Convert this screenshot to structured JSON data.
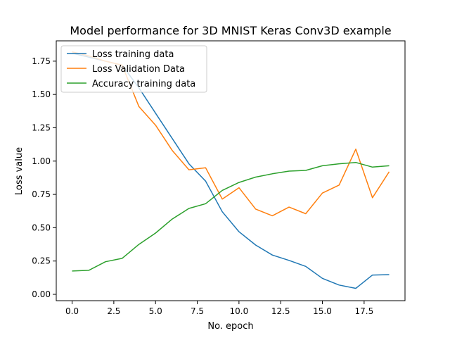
{
  "chart_data": {
    "type": "line",
    "title": "Model performance for 3D MNIST Keras Conv3D example",
    "xlabel": "No. epoch",
    "ylabel": "Loss value",
    "xlim": [
      -0.95,
      19.95
    ],
    "ylim": [
      -0.0475,
      1.9025
    ],
    "xticks": [
      0,
      2.5,
      5,
      7.5,
      10,
      12.5,
      15,
      17.5
    ],
    "xtick_labels": [
      "0.0",
      "2.5",
      "5.0",
      "7.5",
      "10.0",
      "12.5",
      "15.0",
      "17.5"
    ],
    "yticks": [
      0,
      0.25,
      0.5,
      0.75,
      1.0,
      1.25,
      1.5,
      1.75
    ],
    "ytick_labels": [
      "0.00",
      "0.25",
      "0.50",
      "0.75",
      "1.00",
      "1.25",
      "1.50",
      "1.75"
    ],
    "grid": false,
    "legend_position": "top-left",
    "x": [
      0,
      1,
      2,
      3,
      4,
      5,
      6,
      7,
      8,
      9,
      10,
      11,
      12,
      13,
      14,
      15,
      16,
      17,
      18,
      19
    ],
    "series": [
      {
        "name": "Loss training data",
        "color": "#1f77b4",
        "values": [
          1.81,
          1.78,
          1.75,
          1.72,
          1.55,
          1.36,
          1.17,
          0.98,
          0.85,
          0.62,
          0.47,
          0.37,
          0.295,
          0.255,
          0.21,
          0.12,
          0.07,
          0.045,
          0.145,
          0.148
        ]
      },
      {
        "name": "Loss Validation Data",
        "color": "#ff7f0e",
        "values": [
          1.82,
          1.79,
          1.75,
          1.72,
          1.41,
          1.27,
          1.08,
          0.935,
          0.95,
          0.715,
          0.8,
          0.64,
          0.59,
          0.655,
          0.605,
          0.76,
          0.82,
          1.09,
          0.725,
          0.92
        ]
      },
      {
        "name": "Accuracy training data",
        "color": "#2ca02c",
        "values": [
          0.175,
          0.18,
          0.245,
          0.27,
          0.375,
          0.46,
          0.565,
          0.645,
          0.68,
          0.78,
          0.84,
          0.88,
          0.905,
          0.925,
          0.93,
          0.965,
          0.98,
          0.99,
          0.955,
          0.965
        ]
      }
    ]
  }
}
